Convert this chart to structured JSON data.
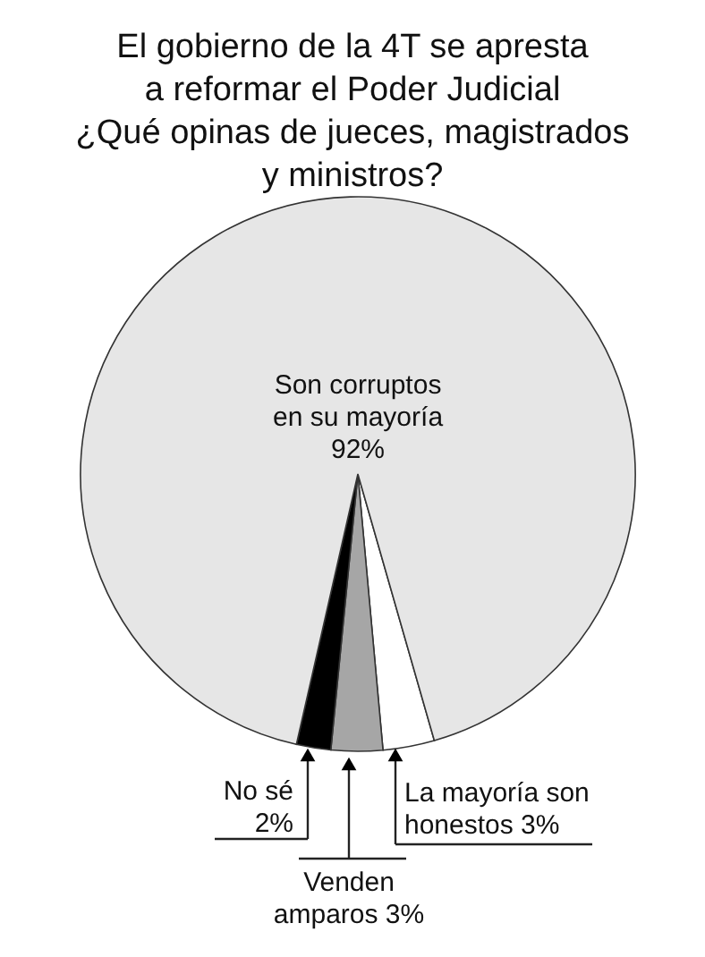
{
  "chart_data": {
    "type": "pie",
    "title": "El gobierno de la 4T se apresta\na reformar el Poder Judicial\n¿Qué opinas de jueces, magistrados\ny ministros?",
    "categories": [
      "La mayoría son\nhonestos",
      "Venden\namparos",
      "No sé",
      "Son corruptos\nen su mayoría"
    ],
    "values": [
      3,
      3,
      2,
      92
    ],
    "value_labels": [
      "3%",
      "3%",
      "2%",
      "92%"
    ],
    "colors": [
      "#ffffff",
      "#a6a6a6",
      "#000000",
      "#e6e6e6"
    ]
  }
}
